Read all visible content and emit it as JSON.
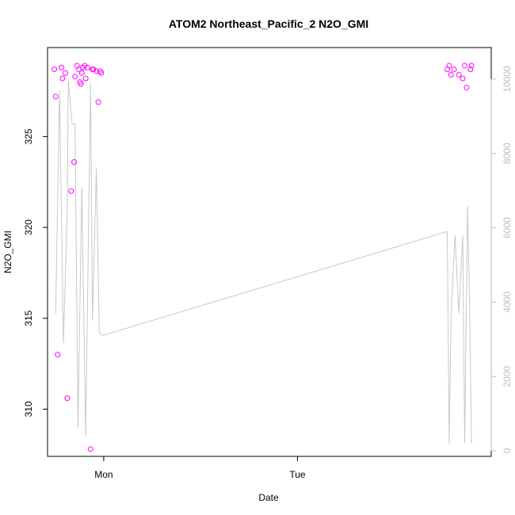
{
  "chart_data": {
    "type": "scatter",
    "title": "ATOM2 Northeast_Pacific_2 N2O_GMI",
    "xlabel": "Date",
    "ylabel": "N2O_GMI",
    "x_ticks": [
      "Mon",
      "Tue"
    ],
    "y_ticks": [
      "310",
      "315",
      "320",
      "325"
    ],
    "y2_ticks": [
      "0",
      "2000",
      "4000",
      "6000",
      "8000",
      "10000"
    ],
    "ylim": [
      307.4,
      329.9
    ],
    "y2lim": [
      -150,
      10850
    ],
    "xlim": [
      -0.29,
      2.0
    ],
    "x_axis_note": "x in days since Mon 00:00",
    "series": [
      {
        "type": "scatter",
        "color": "#ff00ff",
        "marker": "open-circle",
        "axis": "left",
        "points": [
          {
            "x": -0.255,
            "y": 328.7
          },
          {
            "x": -0.248,
            "y": 327.2
          },
          {
            "x": -0.238,
            "y": 313.0
          },
          {
            "x": -0.218,
            "y": 328.8
          },
          {
            "x": -0.213,
            "y": 328.2
          },
          {
            "x": -0.198,
            "y": 328.5
          },
          {
            "x": -0.188,
            "y": 310.6
          },
          {
            "x": -0.168,
            "y": 322.0
          },
          {
            "x": -0.153,
            "y": 323.6
          },
          {
            "x": -0.148,
            "y": 328.3
          },
          {
            "x": -0.138,
            "y": 328.9
          },
          {
            "x": -0.128,
            "y": 328.7
          },
          {
            "x": -0.123,
            "y": 328.0
          },
          {
            "x": -0.118,
            "y": 327.9
          },
          {
            "x": -0.113,
            "y": 328.5
          },
          {
            "x": -0.108,
            "y": 328.8
          },
          {
            "x": -0.098,
            "y": 328.9
          },
          {
            "x": -0.093,
            "y": 328.2
          },
          {
            "x": -0.085,
            "y": 328.8
          },
          {
            "x": -0.068,
            "y": 307.8
          },
          {
            "x": -0.058,
            "y": 328.7
          },
          {
            "x": -0.053,
            "y": 328.7
          },
          {
            "x": -0.038,
            "y": 328.6
          },
          {
            "x": -0.028,
            "y": 326.9
          },
          {
            "x": -0.018,
            "y": 328.6
          },
          {
            "x": -0.013,
            "y": 328.5
          },
          {
            "x": 1.773,
            "y": 328.7
          },
          {
            "x": 1.783,
            "y": 328.9
          },
          {
            "x": 1.793,
            "y": 328.4
          },
          {
            "x": 1.808,
            "y": 328.7
          },
          {
            "x": 1.833,
            "y": 328.4
          },
          {
            "x": 1.853,
            "y": 328.2
          },
          {
            "x": 1.863,
            "y": 328.9
          },
          {
            "x": 1.873,
            "y": 327.7
          },
          {
            "x": 1.893,
            "y": 328.7
          },
          {
            "x": 1.898,
            "y": 328.9
          }
        ]
      },
      {
        "type": "line",
        "color": "#c8c8c8",
        "axis": "right",
        "points": [
          {
            "x": -0.248,
            "y": 3700
          },
          {
            "x": -0.228,
            "y": 9700
          },
          {
            "x": -0.208,
            "y": 2900
          },
          {
            "x": -0.188,
            "y": 6500
          },
          {
            "x": -0.183,
            "y": 10000
          },
          {
            "x": -0.163,
            "y": 8800
          },
          {
            "x": -0.148,
            "y": 8800
          },
          {
            "x": -0.133,
            "y": 600
          },
          {
            "x": -0.113,
            "y": 7100
          },
          {
            "x": -0.093,
            "y": 400
          },
          {
            "x": -0.068,
            "y": 9900
          },
          {
            "x": -0.058,
            "y": 3500
          },
          {
            "x": -0.038,
            "y": 7600
          },
          {
            "x": -0.023,
            "y": 3200
          },
          {
            "x": -0.008,
            "y": 3100
          },
          {
            "x": 1.773,
            "y": 5900
          },
          {
            "x": 1.783,
            "y": 200
          },
          {
            "x": 1.793,
            "y": 3700
          },
          {
            "x": 1.813,
            "y": 5800
          },
          {
            "x": 1.833,
            "y": 3700
          },
          {
            "x": 1.853,
            "y": 5800
          },
          {
            "x": 1.863,
            "y": 200
          },
          {
            "x": 1.878,
            "y": 6600
          },
          {
            "x": 1.888,
            "y": 4000
          },
          {
            "x": 1.898,
            "y": 200
          }
        ]
      }
    ],
    "grid": false,
    "legend": "none",
    "colors": {
      "points": "#ff00ff",
      "line": "#c8c8c8",
      "right_axis": "#bebebe",
      "axes": "#000000"
    }
  }
}
